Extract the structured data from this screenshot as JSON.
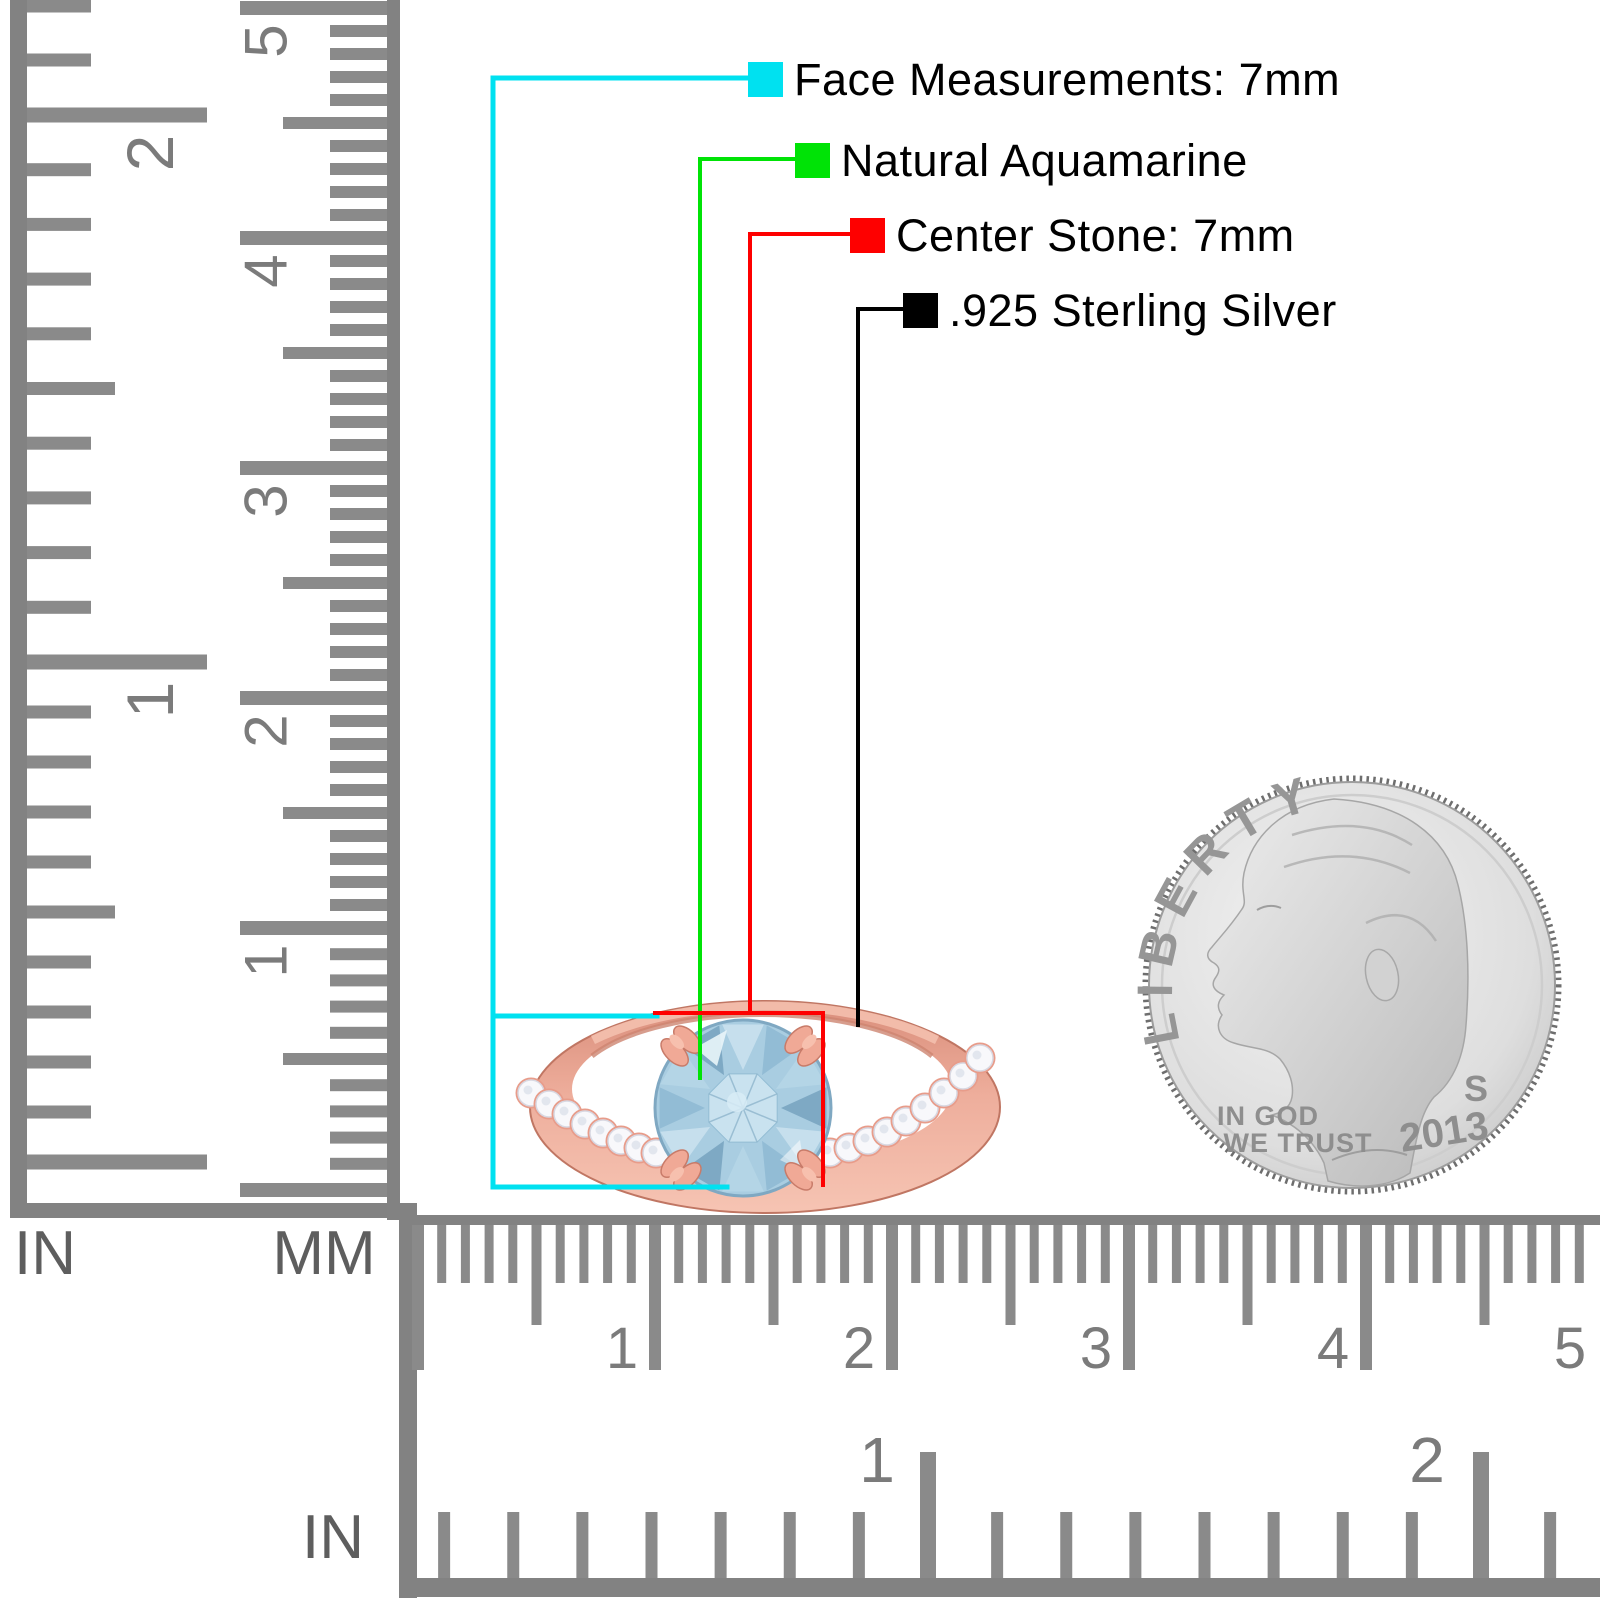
{
  "callouts": [
    {
      "label": "Face Measurements: 7mm",
      "color": "#00e1f0"
    },
    {
      "label": "Natural Aquamarine",
      "color": "#00e306"
    },
    {
      "label": "Center Stone: 7mm",
      "color": "#fe0000"
    },
    {
      "label": ".925 Sterling Silver",
      "color": "#000000"
    }
  ],
  "rulers": {
    "left": {
      "inch_unit_label": "IN",
      "mm_unit_label": "MM",
      "inch_numbers": [
        "1",
        "2"
      ],
      "cm_numbers": [
        "1",
        "2",
        "3",
        "4",
        "5"
      ]
    },
    "bottom": {
      "inch_unit_label": "IN",
      "cm_numbers": [
        "1",
        "2",
        "3",
        "4",
        "5"
      ],
      "inch_numbers": [
        "1",
        "2"
      ]
    }
  },
  "coin": {
    "legend": "LIBERTY",
    "motto_line1": "IN GOD",
    "motto_line2": "WE TRUST",
    "mint_mark": "S",
    "year": "2013"
  },
  "colors": {
    "ruler_marks": "#8a8a8a",
    "ruler_bars": "#828282",
    "ruler_numbers": "#7b7b7b",
    "rose_gold": "#eeae9c",
    "rose_gold_dark": "#c07663",
    "aquamarine": "#a9cde1",
    "aquamarine_dark": "#7fa8c2",
    "accent_stone": "#f8f8fb",
    "coin_silver": "#d7d7d7",
    "coin_text": "#8f8f8f"
  }
}
